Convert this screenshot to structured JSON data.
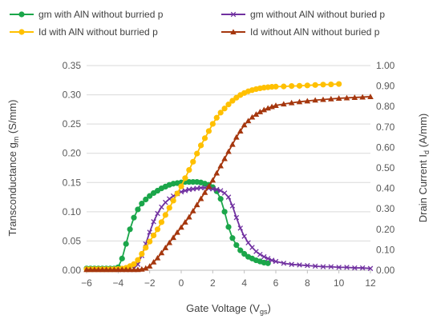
{
  "chart_data": {
    "type": "line",
    "x_axis": {
      "label": "Gate Voltage (V",
      "label_sub": "gs",
      "label_end": ")",
      "range": [
        -6,
        12
      ],
      "ticks": [
        -6,
        -4,
        -2,
        0,
        2,
        4,
        6,
        8,
        10,
        12
      ]
    },
    "y_axis_left": {
      "label": "Transconductance g",
      "label_sub": "m",
      "label_end": " (S/mm)",
      "range": [
        0,
        0.35
      ],
      "ticks": [
        "0.00",
        "0.05",
        "0.10",
        "0.15",
        "0.20",
        "0.25",
        "0.30",
        "0.35"
      ]
    },
    "y_axis_right": {
      "label": "Drain Current I",
      "label_sub": "d",
      "label_end": " (A/mm)",
      "range": [
        0,
        1.0
      ],
      "ticks": [
        "0.00",
        "0.10",
        "0.20",
        "0.30",
        "0.40",
        "0.50",
        "0.60",
        "0.70",
        "0.80",
        "0.90",
        "1.00"
      ]
    },
    "grid": "horizontal",
    "legend_position": "top",
    "series": [
      {
        "name": "gm with AlN without burried p",
        "axis": "left",
        "color": "#1BA64A",
        "marker": "circle",
        "x": [
          -6,
          -5.75,
          -5.5,
          -5.25,
          -5,
          -4.75,
          -4.5,
          -4.25,
          -4,
          -3.75,
          -3.5,
          -3.25,
          -3,
          -2.75,
          -2.5,
          -2.25,
          -2,
          -1.75,
          -1.5,
          -1.25,
          -1,
          -0.75,
          -0.5,
          -0.25,
          0,
          0.25,
          0.5,
          0.75,
          1,
          1.25,
          1.5,
          1.75,
          2,
          2.25,
          2.5,
          2.75,
          3,
          3.25,
          3.5,
          3.75,
          4,
          4.25,
          4.5,
          4.75,
          5,
          5.25,
          5.5
        ],
        "y": [
          0.003,
          0.003,
          0.003,
          0.003,
          0.003,
          0.003,
          0.003,
          0.003,
          0.005,
          0.02,
          0.045,
          0.07,
          0.09,
          0.104,
          0.114,
          0.121,
          0.127,
          0.132,
          0.136,
          0.14,
          0.143,
          0.146,
          0.148,
          0.149,
          0.15,
          0.151,
          0.151,
          0.151,
          0.151,
          0.15,
          0.148,
          0.146,
          0.142,
          0.135,
          0.122,
          0.1,
          0.074,
          0.055,
          0.043,
          0.034,
          0.028,
          0.023,
          0.02,
          0.017,
          0.015,
          0.013,
          0.012
        ]
      },
      {
        "name": "gm without AlN without buried p",
        "axis": "left",
        "color": "#7030A0",
        "marker": "x",
        "x": [
          -3,
          -2.75,
          -2.5,
          -2.25,
          -2,
          -1.75,
          -1.5,
          -1.25,
          -1,
          -0.75,
          -0.5,
          -0.25,
          0,
          0.25,
          0.5,
          0.75,
          1,
          1.25,
          1.5,
          1.75,
          2,
          2.25,
          2.5,
          2.75,
          3,
          3.25,
          3.5,
          3.75,
          4,
          4.25,
          4.5,
          4.75,
          5,
          5.25,
          5.5,
          5.75,
          6,
          6.5,
          7,
          7.5,
          8,
          8.5,
          9,
          9.5,
          10,
          10.5,
          11,
          11.5,
          12
        ],
        "y": [
          0.003,
          0.01,
          0.025,
          0.045,
          0.065,
          0.083,
          0.097,
          0.108,
          0.116,
          0.122,
          0.127,
          0.131,
          0.134,
          0.136,
          0.138,
          0.139,
          0.14,
          0.141,
          0.141,
          0.14,
          0.139,
          0.138,
          0.136,
          0.132,
          0.125,
          0.11,
          0.09,
          0.072,
          0.058,
          0.047,
          0.039,
          0.032,
          0.027,
          0.023,
          0.02,
          0.017,
          0.015,
          0.012,
          0.01,
          0.009,
          0.008,
          0.007,
          0.006,
          0.006,
          0.005,
          0.005,
          0.004,
          0.004,
          0.003
        ]
      },
      {
        "name": "Id with AlN without burried p",
        "axis": "right",
        "color": "#FFC000",
        "marker": "circle",
        "x": [
          -6,
          -5.75,
          -5.5,
          -5.25,
          -5,
          -4.75,
          -4.5,
          -4.25,
          -4,
          -3.75,
          -3.5,
          -3.25,
          -3,
          -2.75,
          -2.5,
          -2.25,
          -2,
          -1.75,
          -1.5,
          -1.25,
          -1,
          -0.75,
          -0.5,
          -0.25,
          0,
          0.25,
          0.5,
          0.75,
          1,
          1.25,
          1.5,
          1.75,
          2,
          2.25,
          2.5,
          2.75,
          3,
          3.25,
          3.5,
          3.75,
          4,
          4.25,
          4.5,
          4.75,
          5,
          5.25,
          5.5,
          5.75,
          6,
          6.5,
          7,
          7.5,
          8,
          8.5,
          9,
          9.5,
          10
        ],
        "y": [
          0.005,
          0.005,
          0.005,
          0.005,
          0.005,
          0.005,
          0.005,
          0.005,
          0.006,
          0.008,
          0.012,
          0.02,
          0.03,
          0.05,
          0.08,
          0.11,
          0.14,
          0.17,
          0.2,
          0.235,
          0.27,
          0.305,
          0.34,
          0.375,
          0.41,
          0.45,
          0.49,
          0.53,
          0.57,
          0.61,
          0.645,
          0.68,
          0.715,
          0.745,
          0.77,
          0.79,
          0.81,
          0.828,
          0.843,
          0.856,
          0.866,
          0.874,
          0.88,
          0.885,
          0.889,
          0.892,
          0.894,
          0.896,
          0.897,
          0.898,
          0.9,
          0.901,
          0.903,
          0.905,
          0.907,
          0.908,
          0.91
        ]
      },
      {
        "name": "Id without AlN without buried p",
        "axis": "right",
        "color": "#A5370E",
        "marker": "triangle",
        "x": [
          -6,
          -5.75,
          -5.5,
          -5.25,
          -5,
          -4.75,
          -4.5,
          -4.25,
          -4,
          -3.75,
          -3.5,
          -3.25,
          -3,
          -2.75,
          -2.5,
          -2.25,
          -2,
          -1.75,
          -1.5,
          -1.25,
          -1,
          -0.75,
          -0.5,
          -0.25,
          0,
          0.25,
          0.5,
          0.75,
          1,
          1.25,
          1.5,
          1.75,
          2,
          2.25,
          2.5,
          2.75,
          3,
          3.25,
          3.5,
          3.75,
          4,
          4.25,
          4.5,
          4.75,
          5,
          5.25,
          5.5,
          5.75,
          6,
          6.5,
          7,
          7.5,
          8,
          8.5,
          9,
          9.5,
          10,
          10.5,
          11,
          11.5,
          12
        ],
        "y": [
          0.003,
          0.003,
          0.003,
          0.003,
          0.003,
          0.003,
          0.003,
          0.003,
          0.003,
          0.003,
          0.003,
          0.003,
          0.003,
          0.003,
          0.005,
          0.01,
          0.02,
          0.04,
          0.06,
          0.085,
          0.11,
          0.135,
          0.16,
          0.185,
          0.21,
          0.235,
          0.26,
          0.29,
          0.32,
          0.35,
          0.38,
          0.41,
          0.44,
          0.475,
          0.51,
          0.545,
          0.58,
          0.615,
          0.65,
          0.68,
          0.71,
          0.73,
          0.748,
          0.762,
          0.774,
          0.784,
          0.792,
          0.799,
          0.805,
          0.812,
          0.818,
          0.823,
          0.827,
          0.831,
          0.834,
          0.837,
          0.84,
          0.842,
          0.844,
          0.846,
          0.848
        ]
      }
    ]
  }
}
